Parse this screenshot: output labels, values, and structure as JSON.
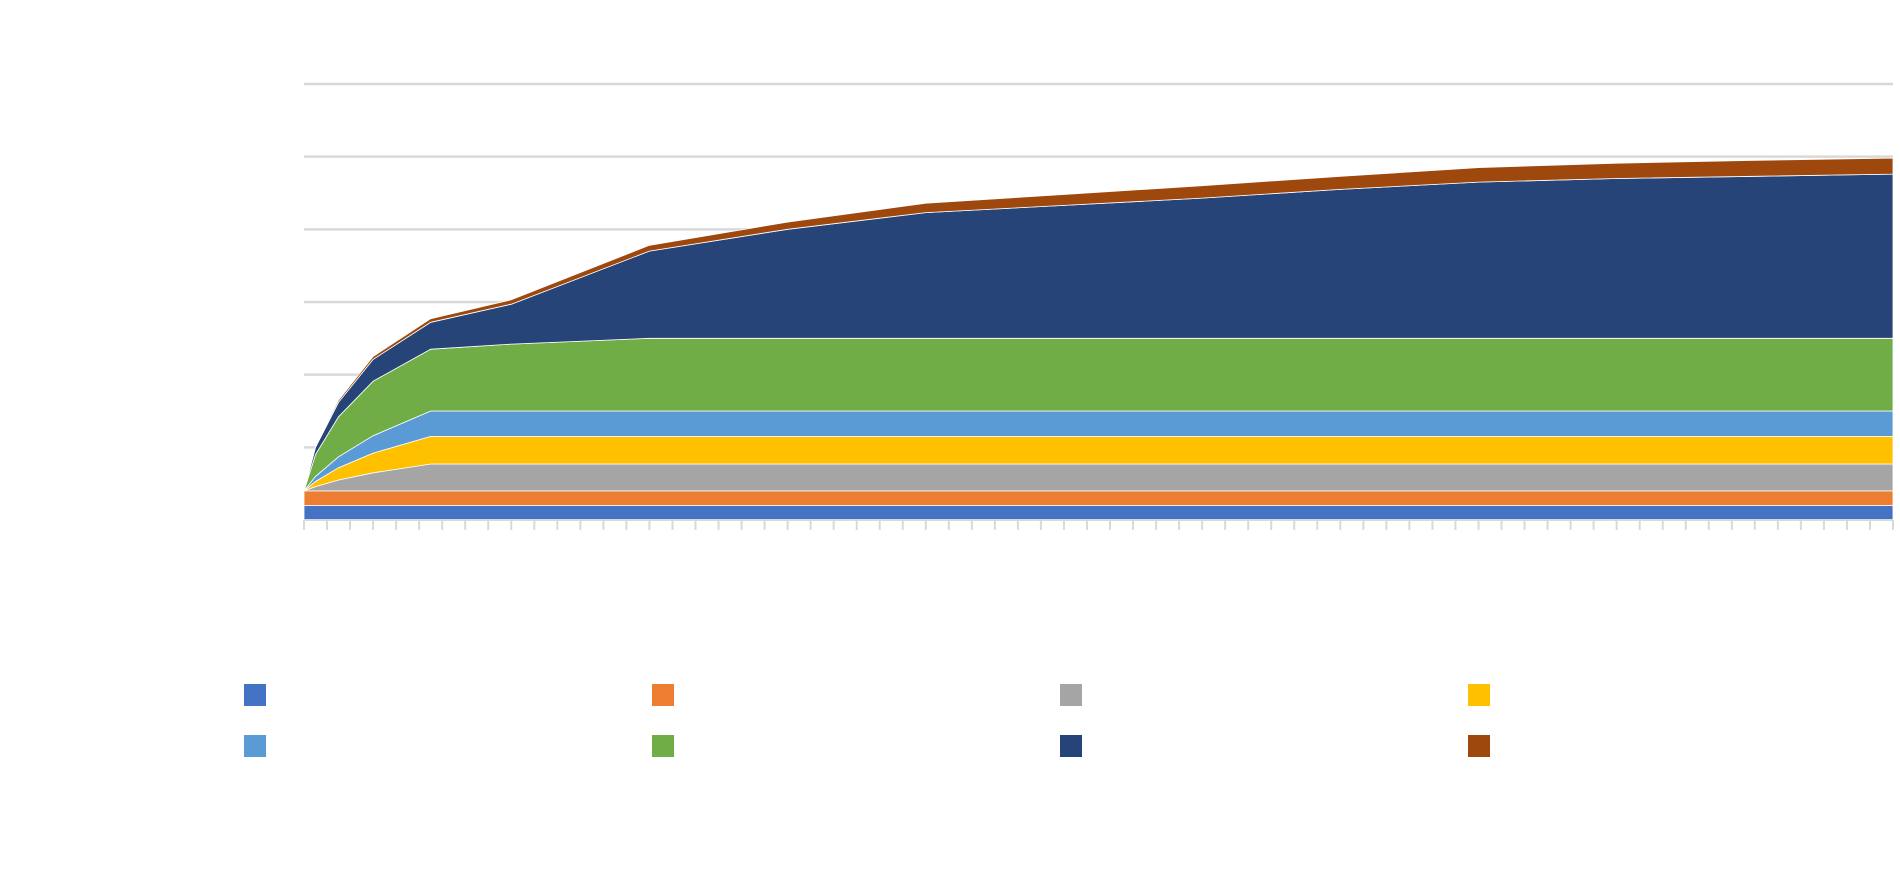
{
  "chart_data": {
    "type": "area",
    "stacked": true,
    "title": "",
    "xlabel": "",
    "ylabel": "",
    "ylim": [
      0,
      6
    ],
    "grid": true,
    "legend_position": "bottom",
    "x": [
      0,
      0.5,
      1.5,
      3,
      5.5,
      9,
      15,
      21,
      27,
      33,
      39,
      45,
      51,
      57,
      63,
      69
    ],
    "series": [
      {
        "name": "",
        "color": "#4472C4",
        "values": [
          0.2,
          0.2,
          0.2,
          0.2,
          0.2,
          0.2,
          0.2,
          0.2,
          0.2,
          0.2,
          0.2,
          0.2,
          0.2,
          0.2,
          0.2,
          0.2
        ]
      },
      {
        "name": "",
        "color": "#ED7D31",
        "values": [
          0.2,
          0.2,
          0.2,
          0.2,
          0.2,
          0.2,
          0.2,
          0.2,
          0.2,
          0.2,
          0.2,
          0.2,
          0.2,
          0.2,
          0.2,
          0.2
        ]
      },
      {
        "name": "",
        "color": "#A5A5A5",
        "values": [
          0,
          0.06,
          0.15,
          0.25,
          0.37,
          0.37,
          0.37,
          0.37,
          0.37,
          0.37,
          0.37,
          0.37,
          0.37,
          0.37,
          0.37,
          0.37
        ]
      },
      {
        "name": "",
        "color": "#FFC000",
        "values": [
          0,
          0.07,
          0.17,
          0.27,
          0.38,
          0.38,
          0.38,
          0.38,
          0.38,
          0.38,
          0.38,
          0.38,
          0.38,
          0.38,
          0.38,
          0.38
        ]
      },
      {
        "name": "",
        "color": "#5B9BD5",
        "values": [
          0,
          0.07,
          0.15,
          0.24,
          0.35,
          0.35,
          0.35,
          0.35,
          0.35,
          0.35,
          0.35,
          0.35,
          0.35,
          0.35,
          0.35,
          0.35
        ]
      },
      {
        "name": "",
        "color": "#70AD47",
        "values": [
          0,
          0.3,
          0.55,
          0.75,
          0.85,
          0.92,
          1.0,
          1.0,
          1.0,
          1.0,
          1.0,
          1.0,
          1.0,
          1.0,
          1.0,
          1.0
        ]
      },
      {
        "name": "",
        "color": "#264478",
        "values": [
          0,
          0.1,
          0.2,
          0.3,
          0.37,
          0.55,
          1.2,
          1.5,
          1.73,
          1.83,
          1.93,
          2.05,
          2.15,
          2.2,
          2.23,
          2.26
        ]
      },
      {
        "name": "",
        "color": "#9E480E",
        "values": [
          0,
          0.02,
          0.03,
          0.04,
          0.05,
          0.06,
          0.08,
          0.1,
          0.13,
          0.15,
          0.17,
          0.18,
          0.2,
          0.21,
          0.22,
          0.22
        ]
      }
    ]
  }
}
